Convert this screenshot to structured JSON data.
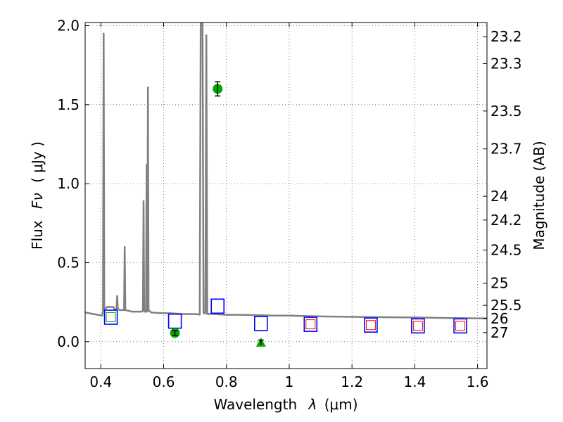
{
  "chart_data": {
    "type": "line",
    "title": "",
    "xlabel_main": "Wavelength",
    "xlabel_symbol": "λ",
    "xlabel_unit": "(μm)",
    "ylabel_main": "Flux",
    "ylabel_symbol": "Fν",
    "ylabel_unit": "( μJy )",
    "y2label": "Magnitude (AB)",
    "xlim": [
      0.35,
      1.63
    ],
    "ylim": [
      -0.17,
      2.02
    ],
    "x_ticks": [
      0.4,
      0.6,
      0.8,
      1.0,
      1.2,
      1.4,
      1.6
    ],
    "x_tick_labels": [
      "0.4",
      "0.6",
      "0.8",
      "1",
      "1.2",
      "1.4",
      "1.6"
    ],
    "y_ticks": [
      0.0,
      0.5,
      1.0,
      1.5,
      2.0
    ],
    "y_tick_labels": [
      "0.0",
      "0.5",
      "1.0",
      "1.5",
      "2.0"
    ],
    "y2_ticks": [
      {
        "label": "23.2",
        "flux": 1.93
      },
      {
        "label": "23.3",
        "flux": 1.76
      },
      {
        "label": "23.5",
        "flux": 1.46
      },
      {
        "label": "23.7",
        "flux": 1.22
      },
      {
        "label": "24",
        "flux": 0.92
      },
      {
        "label": "24.2",
        "flux": 0.77
      },
      {
        "label": "24.5",
        "flux": 0.58
      },
      {
        "label": "25",
        "flux": 0.37
      },
      {
        "label": "25.5",
        "flux": 0.23
      },
      {
        "label": "26",
        "flux": 0.147
      },
      {
        "label": "27",
        "flux": 0.058
      }
    ],
    "series": [
      {
        "name": "model spectrum",
        "kind": "line",
        "color": "#808080",
        "points": [
          [
            0.35,
            0.185
          ],
          [
            0.39,
            0.17
          ],
          [
            0.405,
            0.165
          ],
          [
            0.407,
            0.2
          ],
          [
            0.409,
            1.95
          ],
          [
            0.411,
            0.2
          ],
          [
            0.415,
            0.21
          ],
          [
            0.42,
            0.22
          ],
          [
            0.44,
            0.22
          ],
          [
            0.445,
            0.2
          ],
          [
            0.45,
            0.21
          ],
          [
            0.452,
            0.29
          ],
          [
            0.454,
            0.21
          ],
          [
            0.46,
            0.2
          ],
          [
            0.474,
            0.2
          ],
          [
            0.476,
            0.6
          ],
          [
            0.478,
            0.2
          ],
          [
            0.5,
            0.19
          ],
          [
            0.53,
            0.19
          ],
          [
            0.534,
            0.2
          ],
          [
            0.536,
            0.89
          ],
          [
            0.538,
            0.19
          ],
          [
            0.544,
            0.19
          ],
          [
            0.546,
            1.12
          ],
          [
            0.548,
            0.19
          ],
          [
            0.55,
            1.61
          ],
          [
            0.552,
            0.2
          ],
          [
            0.56,
            0.185
          ],
          [
            0.58,
            0.182
          ],
          [
            0.62,
            0.18
          ],
          [
            0.66,
            0.175
          ],
          [
            0.7,
            0.175
          ],
          [
            0.715,
            0.172
          ],
          [
            0.718,
            2.02
          ],
          [
            0.724,
            2.02
          ],
          [
            0.727,
            0.18
          ],
          [
            0.733,
            0.18
          ],
          [
            0.736,
            1.94
          ],
          [
            0.739,
            0.175
          ],
          [
            0.76,
            0.175
          ],
          [
            0.8,
            0.17
          ],
          [
            0.85,
            0.17
          ],
          [
            0.9,
            0.168
          ],
          [
            0.95,
            0.165
          ],
          [
            1.0,
            0.165
          ],
          [
            1.1,
            0.16
          ],
          [
            1.2,
            0.157
          ],
          [
            1.3,
            0.155
          ],
          [
            1.4,
            0.153
          ],
          [
            1.5,
            0.15
          ],
          [
            1.63,
            0.147
          ]
        ]
      },
      {
        "name": "blue squares",
        "kind": "square",
        "color": "#0000ff",
        "points": [
          [
            0.432,
            0.155
          ],
          [
            0.636,
            0.13
          ],
          [
            0.772,
            0.225
          ],
          [
            0.91,
            0.115
          ],
          [
            1.068,
            0.11
          ],
          [
            1.26,
            0.105
          ],
          [
            1.41,
            0.1
          ],
          [
            1.545,
            0.1
          ]
        ]
      },
      {
        "name": "green square",
        "kind": "small-square",
        "color": "#00aa00",
        "points": [
          [
            0.432,
            0.155
          ]
        ]
      },
      {
        "name": "red squares",
        "kind": "small-square",
        "color": "#ff0000",
        "points": [
          [
            1.068,
            0.11
          ],
          [
            1.26,
            0.105
          ],
          [
            1.41,
            0.1
          ],
          [
            1.545,
            0.1
          ]
        ]
      },
      {
        "name": "measured flux",
        "kind": "circle",
        "color": "#00aa00",
        "points": [
          [
            0.636,
            0.055,
            0.015
          ],
          [
            0.772,
            1.6,
            0.045
          ]
        ]
      },
      {
        "name": "upper limit",
        "kind": "triangle",
        "color": "#00aa00",
        "points": [
          [
            0.91,
            -0.005,
            0.015
          ]
        ]
      }
    ]
  }
}
